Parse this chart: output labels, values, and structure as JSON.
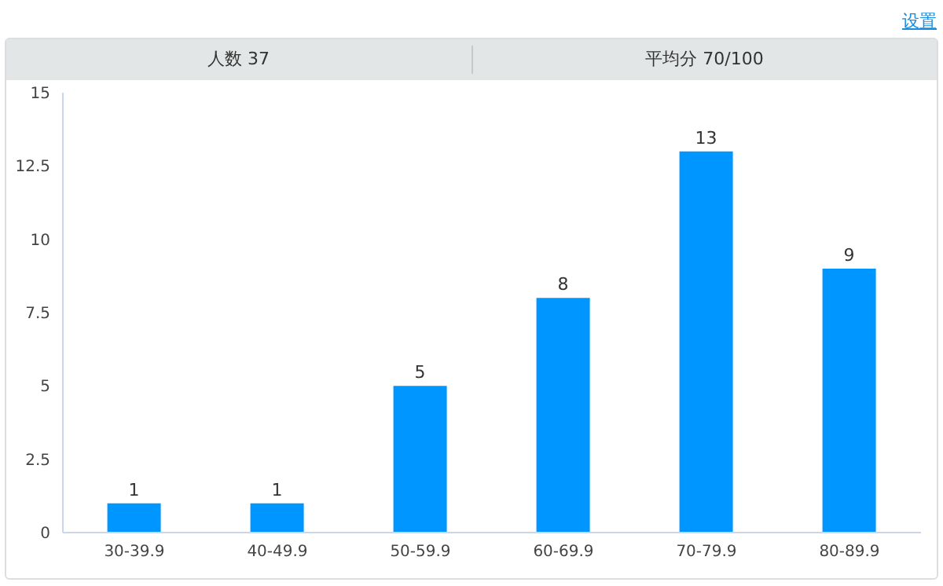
{
  "chart_data": {
    "type": "bar",
    "categories": [
      "30-39.9",
      "40-49.9",
      "50-59.9",
      "60-69.9",
      "70-79.9",
      "80-89.9"
    ],
    "values": [
      1,
      1,
      5,
      8,
      13,
      9
    ],
    "color": "#0096ff",
    "ylim": [
      0,
      15
    ],
    "yticks": [
      0,
      2.5,
      5,
      7.5,
      10,
      12.5,
      15
    ],
    "grid": false,
    "data_labels": true,
    "annotations": [
      "设置",
      "人数 37",
      "平均分 70/100"
    ]
  }
}
